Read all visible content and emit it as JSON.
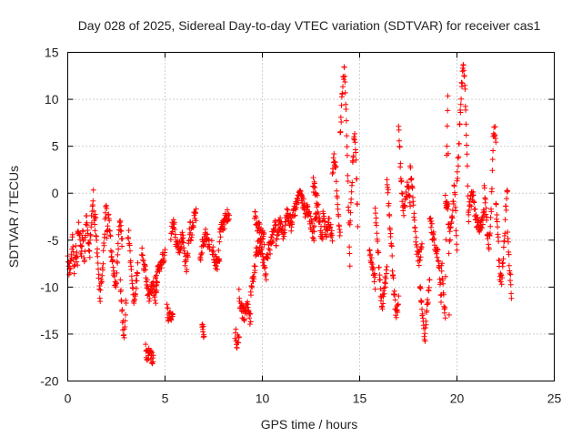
{
  "chart_data": {
    "type": "scatter",
    "title": "Day 028 of 2025, Sidereal Day-to-day VTEC variation (SDTVAR) for receiver cas1",
    "xlabel": "GPS time / hours",
    "ylabel": "SDTVAR / TECUs",
    "xlim": [
      0,
      25
    ],
    "ylim": [
      -20,
      15
    ],
    "xticks": [
      0,
      5,
      10,
      15,
      20,
      25
    ],
    "yticks": [
      15,
      10,
      5,
      0,
      -5,
      -10,
      -15,
      -20
    ],
    "grid": true,
    "marker": "+",
    "series_color": "#ff0000",
    "series": [
      {
        "name": "SDTVAR",
        "segments": [
          {
            "x0": 0.0,
            "x1": 0.5,
            "y": [
              -6.5,
              -8.5,
              -7.0,
              -5.0,
              -9.0,
              -6.0,
              -7.5
            ]
          },
          {
            "x0": 0.5,
            "x1": 1.4,
            "y": [
              -5.0,
              -3.5,
              -6.5,
              -4.0,
              -7.0,
              -2.0,
              -5.0,
              -6.5,
              -3.0,
              0.0,
              -4.5
            ]
          },
          {
            "x0": 1.4,
            "x1": 2.0,
            "y": [
              -2.0,
              -5.0,
              -8.5,
              -11.0,
              -9.5,
              -7.0,
              -3.0,
              -1.0
            ]
          },
          {
            "x0": 2.0,
            "x1": 2.8,
            "y": [
              -4.5,
              -2.5,
              -6.0,
              -8.0,
              -10.5,
              -6.5,
              -3.0,
              -5.5
            ]
          },
          {
            "x0": 2.7,
            "x1": 3.0,
            "y": [
              -10.0,
              -12.0,
              -13.5,
              -15.0,
              -14.0,
              -11.0
            ]
          },
          {
            "x0": 3.1,
            "x1": 3.6,
            "y": [
              -4.0,
              -6.0,
              -9.5,
              -12.0,
              -10.0,
              -8.0
            ]
          },
          {
            "x0": 3.8,
            "x1": 4.6,
            "y": [
              -6.0,
              -7.5,
              -9.0,
              -11.0,
              -10.5,
              -9.5,
              -11.5,
              -10.0
            ]
          },
          {
            "x0": 4.0,
            "x1": 4.4,
            "y": [
              -16.8,
              -17.2,
              -17.0,
              -18.0
            ]
          },
          {
            "x0": 4.5,
            "x1": 5.0,
            "y": [
              -9.5,
              -8.5,
              -7.5,
              -7.0,
              -6.5
            ]
          },
          {
            "x0": 5.1,
            "x1": 5.4,
            "y": [
              -12.5,
              -13.5,
              -13.0
            ]
          },
          {
            "x0": 5.3,
            "x1": 5.9,
            "y": [
              -4.5,
              -3.0,
              -5.5,
              -6.0,
              -4.0
            ]
          },
          {
            "x0": 5.9,
            "x1": 6.3,
            "y": [
              -4.5,
              -6.5,
              -8.0,
              -6.0,
              -3.0
            ]
          },
          {
            "x0": 6.3,
            "x1": 6.6,
            "y": [
              -5.0,
              -3.0,
              -2.0
            ]
          },
          {
            "x0": 6.8,
            "x1": 7.3,
            "y": [
              -7.0,
              -5.0,
              -4.5,
              -6.0
            ]
          },
          {
            "x0": 6.9,
            "x1": 7.0,
            "y": [
              -14.0,
              -15.0
            ]
          },
          {
            "x0": 7.4,
            "x1": 7.8,
            "y": [
              -5.5,
              -7.0,
              -7.5,
              -6.5
            ]
          },
          {
            "x0": 7.8,
            "x1": 8.3,
            "y": [
              -4.5,
              -3.5,
              -2.5,
              -2.0
            ]
          },
          {
            "x0": 8.6,
            "x1": 8.8,
            "y": [
              -15.0,
              -15.8,
              -15.5
            ]
          },
          {
            "x0": 8.8,
            "x1": 9.4,
            "y": [
              -11.0,
              -12.5,
              -13.0,
              -12.0,
              -13.5
            ]
          },
          {
            "x0": 9.4,
            "x1": 10.2,
            "y": [
              -10.5,
              -8.5,
              -6.0,
              -5.5,
              -7.0,
              -9.0
            ]
          },
          {
            "x0": 9.6,
            "x1": 10.1,
            "y": [
              -2.5,
              -4.0,
              -5.0
            ]
          },
          {
            "x0": 10.2,
            "x1": 10.7,
            "y": [
              -7.0,
              -6.0,
              -4.5,
              -3.0
            ]
          },
          {
            "x0": 10.7,
            "x1": 11.5,
            "y": [
              -5.0,
              -3.0,
              -4.5,
              -2.0,
              -3.5
            ]
          },
          {
            "x0": 11.5,
            "x1": 12.3,
            "y": [
              -3.0,
              -2.0,
              -1.0,
              0.0,
              -1.5,
              -2.5
            ]
          },
          {
            "x0": 12.3,
            "x1": 12.8,
            "y": [
              -1.5,
              -3.0,
              -4.5,
              -2.0
            ]
          },
          {
            "x0": 12.6,
            "x1": 13.1,
            "y": [
              1.0,
              0.5,
              -1.5,
              -3.5,
              -5.0
            ]
          },
          {
            "x0": 13.1,
            "x1": 13.6,
            "y": [
              -2.5,
              -4.0,
              -3.0,
              -5.0
            ]
          },
          {
            "x0": 13.6,
            "x1": 14.0,
            "y": [
              2.0,
              4.0,
              3.0,
              0.0,
              -3.0,
              -4.5
            ]
          },
          {
            "x0": 14.0,
            "x1": 14.5,
            "y": [
              6.0,
              9.0,
              12.0,
              13.0,
              10.0,
              5.0,
              -2.0,
              -7.5
            ]
          },
          {
            "x0": 14.5,
            "x1": 14.9,
            "y": [
              -3.5,
              0.0,
              4.0,
              6.5,
              3.0,
              -3.0
            ]
          },
          {
            "x0": 15.5,
            "x1": 15.8,
            "y": [
              -5.5,
              -8.0,
              -9.5
            ]
          },
          {
            "x0": 15.8,
            "x1": 16.4,
            "y": [
              -1.5,
              -5.0,
              -9.5,
              -12.0,
              -10.0,
              -7.5
            ]
          },
          {
            "x0": 16.4,
            "x1": 17.0,
            "y": [
              2.0,
              -2.0,
              -6.0,
              -10.5,
              -13.0,
              -11.5
            ]
          },
          {
            "x0": 17.0,
            "x1": 17.6,
            "y": [
              7.0,
              2.0,
              -2.0,
              -1.0,
              1.0,
              -1.5
            ]
          },
          {
            "x0": 17.6,
            "x1": 18.2,
            "y": [
              2.5,
              -1.0,
              -5.5,
              -7.0,
              -6.0
            ]
          },
          {
            "x0": 18.1,
            "x1": 18.6,
            "y": [
              -10.0,
              -13.0,
              -15.5,
              -12.0,
              -9.0
            ]
          },
          {
            "x0": 18.6,
            "x1": 19.2,
            "y": [
              -2.0,
              -4.5,
              -5.5,
              -7.0,
              -11.5
            ]
          },
          {
            "x0": 19.2,
            "x1": 19.6,
            "y": [
              -7.5,
              -9.0,
              -11.5,
              -13.0,
              3.5,
              10.0,
              -12.5
            ]
          },
          {
            "x0": 19.4,
            "x1": 20.0,
            "y": [
              0.0,
              -2.0,
              -5.0,
              -2.5,
              1.0,
              -6.5
            ]
          },
          {
            "x0": 20.0,
            "x1": 20.6,
            "y": [
              1.0,
              5.0,
              10.0,
              13.5,
              12.0,
              5.0,
              -3.5
            ]
          },
          {
            "x0": 20.6,
            "x1": 21.4,
            "y": [
              -2.0,
              0.0,
              -3.0,
              -4.0,
              -2.0
            ]
          },
          {
            "x0": 21.4,
            "x1": 22.0,
            "y": [
              1.0,
              -3.0,
              -6.0,
              -2.0,
              7.0,
              6.0
            ]
          },
          {
            "x0": 22.0,
            "x1": 22.6,
            "y": [
              -1.5,
              -4.5,
              -8.5,
              -9.0,
              -6.5,
              -2.0,
              0.5
            ]
          },
          {
            "x0": 22.6,
            "x1": 22.8,
            "y": [
              -4.5,
              -7.5,
              -10.5
            ]
          }
        ]
      }
    ]
  }
}
